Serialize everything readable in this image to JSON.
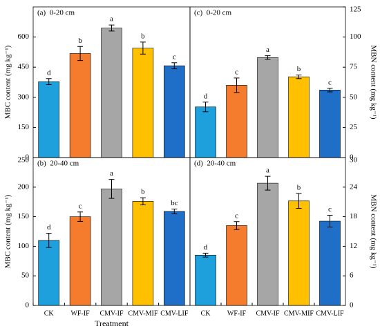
{
  "chart_data": [
    {
      "type": "bar",
      "label": "(a)  0-20 cm",
      "ylabel": "MBC content (mg kg⁻¹)",
      "axis_side": "left",
      "ylim": [
        0,
        750
      ],
      "yticks": [
        0,
        150,
        300,
        450,
        600
      ],
      "values": [
        378,
        518,
        645,
        545,
        457
      ],
      "errors": [
        15,
        35,
        15,
        30,
        15
      ],
      "annotations": [
        "d",
        "b",
        "a",
        "b",
        "c"
      ],
      "colors": [
        "#1ea0dc",
        "#f47c2c",
        "#a6a6a6",
        "#ffc000",
        "#1f6fc8"
      ]
    },
    {
      "type": "bar",
      "label": "(c)  0-20 cm",
      "ylabel": "MBN content (mg kg⁻¹)",
      "axis_side": "right",
      "ylim": [
        0,
        125
      ],
      "yticks": [
        0,
        25,
        50,
        75,
        100,
        125
      ],
      "values": [
        42,
        60,
        83,
        67,
        56
      ],
      "errors": [
        4,
        6,
        1.5,
        1.5,
        1.5
      ],
      "annotations": [
        "d",
        "c",
        "a",
        "b",
        "c"
      ],
      "colors": [
        "#1ea0dc",
        "#f47c2c",
        "#a6a6a6",
        "#ffc000",
        "#1f6fc8"
      ]
    },
    {
      "type": "bar",
      "label": "(b)  20-40 cm",
      "ylabel": "MBC content (mg kg⁻¹)",
      "axis_side": "left",
      "xlabel": "Treatment",
      "categories": [
        "CK",
        "WF-IF",
        "CMV-IF",
        "CMV-MIF",
        "CMV-LIF"
      ],
      "ylim": [
        0,
        250
      ],
      "yticks": [
        0,
        50,
        100,
        150,
        200,
        250
      ],
      "values": [
        110,
        150,
        197,
        176,
        159
      ],
      "errors": [
        12,
        8,
        16,
        6,
        4
      ],
      "annotations": [
        "d",
        "c",
        "a",
        "b",
        "bc"
      ],
      "colors": [
        "#1ea0dc",
        "#f47c2c",
        "#a6a6a6",
        "#ffc000",
        "#1f6fc8"
      ]
    },
    {
      "type": "bar",
      "label": "(d)  20-40 cm",
      "ylabel": "MBN content (mg kg⁻¹)",
      "axis_side": "right",
      "categories": [
        "CK",
        "WF-IF",
        "CMV-IF",
        "CMV-MIF",
        "CMV-LIF"
      ],
      "ylim": [
        0,
        30
      ],
      "yticks": [
        0,
        6,
        12,
        18,
        24,
        30
      ],
      "values": [
        10.2,
        16.2,
        24.8,
        21.2,
        17.1
      ],
      "errors": [
        0.4,
        0.8,
        1.4,
        1.5,
        1.2
      ],
      "annotations": [
        "d",
        "c",
        "a",
        "b",
        "c"
      ],
      "colors": [
        "#1ea0dc",
        "#f47c2c",
        "#a6a6a6",
        "#ffc000",
        "#1f6fc8"
      ]
    }
  ]
}
